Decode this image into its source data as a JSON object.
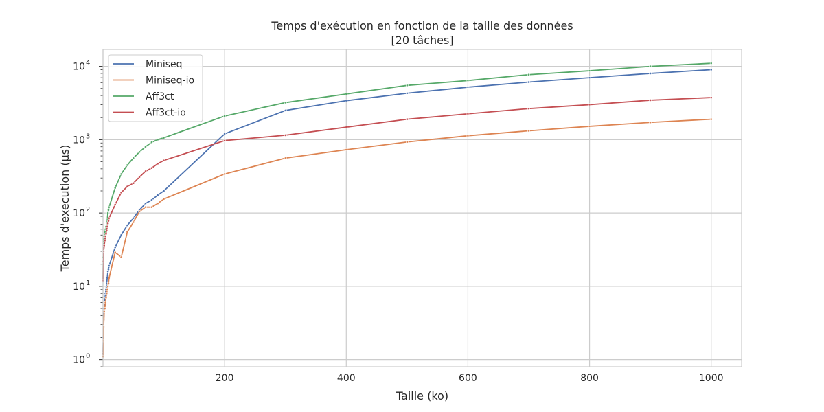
{
  "chart_data": {
    "type": "line",
    "title_line1": "Temps d'exécution en fonction de la taille des données",
    "title_line2": "[20 tâches]",
    "xlabel": "Taille (ko)",
    "ylabel": "Temps d'execution (µs)",
    "xlim": [
      0,
      1050
    ],
    "ylim": [
      0.8,
      17000
    ],
    "yscale": "log",
    "grid": true,
    "legend_position": "top-left",
    "x_ticks": [
      200,
      400,
      600,
      800,
      1000
    ],
    "y_tick_base": "10",
    "y_tick_exponents": [
      "0",
      "1",
      "2",
      "3",
      "4"
    ],
    "x": [
      0.1,
      0.5,
      1,
      2,
      3,
      4,
      5,
      6,
      7,
      8,
      9,
      10,
      20,
      30,
      40,
      50,
      60,
      70,
      80,
      90,
      100,
      200,
      300,
      400,
      500,
      600,
      700,
      800,
      900,
      1000
    ],
    "series": [
      {
        "name": "Miniseq",
        "color": "#4c72b0",
        "values": [
          1.2,
          2,
          3.5,
          5,
          6,
          8,
          9,
          11,
          13,
          16,
          17,
          19,
          34,
          50,
          68,
          85,
          110,
          135,
          150,
          175,
          200,
          1200,
          2500,
          3400,
          4300,
          5200,
          6100,
          7000,
          8000,
          9000
        ]
      },
      {
        "name": "Miniseq-io",
        "color": "#dd8452",
        "values": [
          1.1,
          1.8,
          2.8,
          4.5,
          5,
          6,
          7,
          8,
          9,
          10,
          11,
          13,
          29,
          25,
          55,
          75,
          105,
          120,
          120,
          135,
          155,
          340,
          560,
          730,
          930,
          1130,
          1320,
          1520,
          1720,
          1900
        ]
      },
      {
        "name": "Aff3ct",
        "color": "#55a868",
        "values": [
          12,
          25,
          38,
          48,
          55,
          60,
          65,
          72,
          80,
          100,
          110,
          120,
          220,
          340,
          450,
          560,
          680,
          800,
          920,
          1000,
          1060,
          2100,
          3200,
          4200,
          5500,
          6400,
          7700,
          8700,
          10000,
          11000
        ]
      },
      {
        "name": "Aff3ct-io",
        "color": "#c44e52",
        "values": [
          12,
          22,
          30,
          36,
          42,
          48,
          52,
          58,
          65,
          72,
          78,
          85,
          130,
          190,
          230,
          255,
          310,
          370,
          410,
          470,
          520,
          970,
          1150,
          1480,
          1900,
          2250,
          2650,
          3000,
          3450,
          3750
        ]
      }
    ]
  }
}
